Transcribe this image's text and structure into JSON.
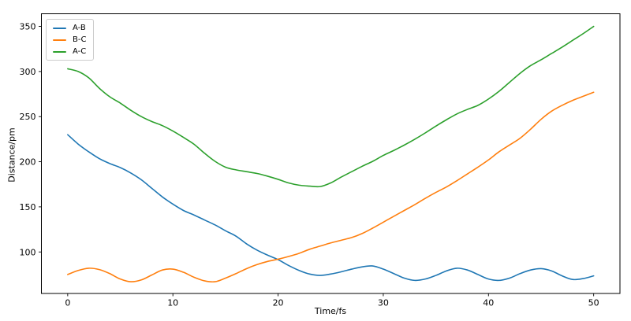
{
  "chart_data": {
    "type": "line",
    "xlabel": "Time/fs",
    "ylabel": "Distance/pm",
    "x": [
      0,
      1,
      2,
      3,
      4,
      5,
      6,
      7,
      8,
      9,
      10,
      11,
      12,
      13,
      14,
      15,
      16,
      17,
      18,
      19,
      20,
      21,
      22,
      23,
      24,
      25,
      26,
      27,
      28,
      29,
      30,
      31,
      32,
      33,
      34,
      35,
      36,
      37,
      38,
      39,
      40,
      41,
      42,
      43,
      44,
      45,
      46,
      47,
      48,
      49,
      50
    ],
    "series": [
      {
        "name": "A-B",
        "color": "#1f77b4",
        "values": [
          230,
          219.5,
          211,
          203.5,
          198,
          193.5,
          187.5,
          180,
          170.5,
          161,
          153,
          146,
          141,
          135.5,
          130,
          123.5,
          117.5,
          109,
          102,
          96.5,
          91.5,
          85,
          79.5,
          75.5,
          74,
          75.5,
          78,
          81,
          83.5,
          84.5,
          81,
          76,
          71,
          68.5,
          70,
          74,
          79,
          82,
          80,
          75,
          70,
          68.5,
          71,
          76,
          80,
          81.5,
          79,
          73.5,
          69.5,
          70.5,
          73.5
        ]
      },
      {
        "name": "B-C",
        "color": "#ff7f0e",
        "values": [
          75,
          79.5,
          82,
          80.5,
          76,
          70,
          67,
          69,
          74.5,
          80,
          81,
          77.5,
          72,
          68,
          67,
          71,
          76,
          81.5,
          86,
          89.5,
          92,
          95,
          98.5,
          103,
          106.5,
          110,
          113,
          116,
          120.5,
          126.5,
          133,
          139.5,
          146,
          152.5,
          159.5,
          166,
          172,
          179,
          186.5,
          194,
          202,
          211,
          218.5,
          226,
          236,
          247,
          256,
          262.5,
          268,
          272.5,
          277
        ]
      },
      {
        "name": "A-C",
        "color": "#2ca02c",
        "values": [
          303,
          300,
          293,
          281.5,
          272,
          265,
          257,
          250,
          244.5,
          240,
          234,
          227,
          219.5,
          209.5,
          200.5,
          194,
          191,
          189,
          187,
          184,
          180.5,
          176.5,
          174,
          173,
          172.5,
          176.5,
          183,
          189,
          195,
          200.5,
          207,
          212.5,
          218.5,
          225,
          232,
          239.5,
          246.5,
          253,
          258,
          262.5,
          269.5,
          278,
          288,
          298,
          306.5,
          313,
          320,
          327,
          334.5,
          342,
          350
        ]
      }
    ],
    "xticks": [
      0,
      10,
      20,
      30,
      40,
      50
    ],
    "yticks": [
      100,
      150,
      200,
      250,
      300,
      350
    ],
    "xlim": [
      -2.5,
      52.5
    ],
    "ylim": [
      54,
      364
    ],
    "grid": false,
    "background": "#ffffff",
    "axis_color": "#000000",
    "legend": {
      "position": "upper-left",
      "entries": [
        "A-B",
        "B-C",
        "A-C"
      ]
    }
  }
}
